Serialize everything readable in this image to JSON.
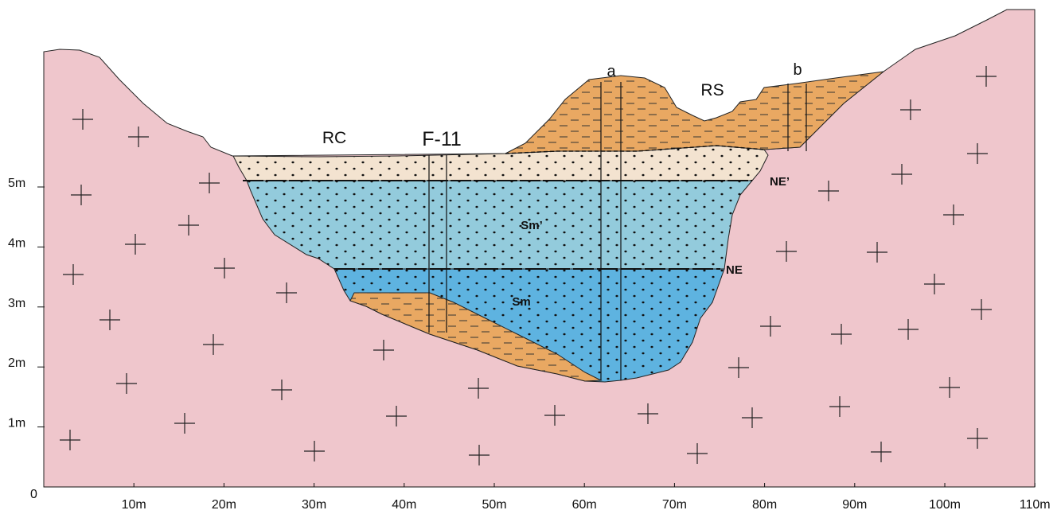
{
  "axis": {
    "y_labels": [
      "0",
      "1m",
      "2m",
      "3m",
      "4m",
      "5m"
    ],
    "x_labels": [
      "10m",
      "20m",
      "30m",
      "40m",
      "50m",
      "60m",
      "70m",
      "80m",
      "90m",
      "100m",
      "110m"
    ]
  },
  "labels": {
    "rc": "RC",
    "f11": "F-11",
    "a": "a",
    "rs": "RS",
    "b": "b",
    "ne_prime": "NE’",
    "ne": "NE",
    "sm_prime": "Sm’",
    "sm": "Sm"
  }
}
